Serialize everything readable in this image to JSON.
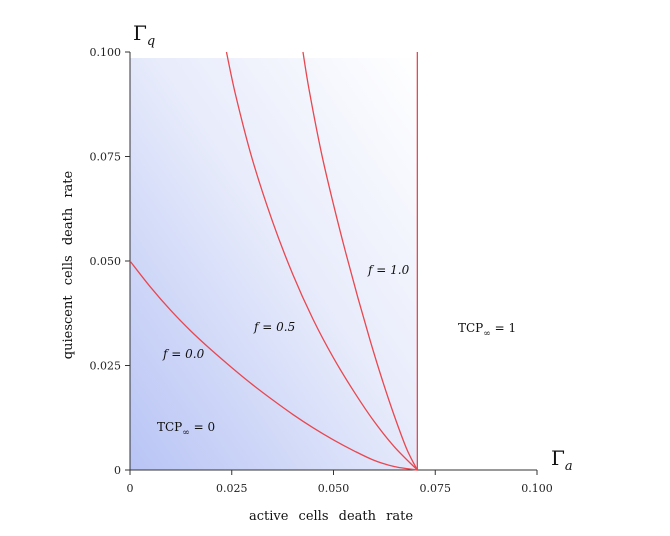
{
  "chart_data": {
    "type": "line",
    "x_var": "Γ",
    "x_var_sub": "a",
    "y_var": "Γ",
    "y_var_sub": "q",
    "xlabel": "active cells death rate",
    "ylabel": "quiescent cells death rate",
    "xlim": [
      0,
      0.1
    ],
    "ylim": [
      0,
      0.1
    ],
    "x_ticks": [
      0,
      0.025,
      0.05,
      0.075,
      0.1
    ],
    "x_tick_labels": [
      "0",
      "0.025",
      "0.050",
      "0.075",
      "0.100"
    ],
    "y_ticks": [
      0,
      0.025,
      0.05,
      0.075,
      0.1
    ],
    "y_tick_labels": [
      "0",
      "0.025",
      "0.050",
      "0.075",
      "0.100"
    ],
    "series_color": "#e8474f",
    "shade_color": "#b8c4f5",
    "shaded_region": "below f = 1.0 boundary (Γa < 0.0706)",
    "series": [
      {
        "name": "f = 0.0",
        "label_math": "f = 0.0",
        "x": [
          0,
          0.005,
          0.01,
          0.015,
          0.02,
          0.025,
          0.03,
          0.035,
          0.04,
          0.045,
          0.05,
          0.055,
          0.06,
          0.065,
          0.0706
        ],
        "y": [
          0.05,
          0.0438,
          0.0382,
          0.0332,
          0.0287,
          0.0245,
          0.0205,
          0.0168,
          0.0133,
          0.0101,
          0.0072,
          0.0046,
          0.0023,
          0.0008,
          0
        ]
      },
      {
        "name": "f = 0.5",
        "label_math": "f = 0.5",
        "x": [
          0.0237,
          0.026,
          0.03,
          0.035,
          0.04,
          0.045,
          0.05,
          0.055,
          0.06,
          0.065,
          0.0706
        ],
        "y": [
          0.1,
          0.0895,
          0.0745,
          0.0595,
          0.0468,
          0.036,
          0.0268,
          0.0188,
          0.0116,
          0.0055,
          0
        ]
      },
      {
        "name": "f = 1.0",
        "label_math": "f = 1.0",
        "x": [
          0.0425,
          0.044,
          0.047,
          0.05,
          0.053,
          0.056,
          0.059,
          0.062,
          0.065,
          0.068,
          0.0706
        ],
        "y": [
          0.1,
          0.091,
          0.076,
          0.0635,
          0.052,
          0.0412,
          0.031,
          0.0215,
          0.0128,
          0.005,
          0
        ]
      },
      {
        "name": "boundary",
        "x": [
          0.0706,
          0.0706
        ],
        "y": [
          0,
          0.1
        ]
      }
    ],
    "annotations": [
      {
        "text": "TCP",
        "sub": "∞",
        "rest": " = 0",
        "id": "tcp0"
      },
      {
        "text": "TCP",
        "sub": "∞",
        "rest": " = 1",
        "id": "tcp1"
      }
    ]
  }
}
